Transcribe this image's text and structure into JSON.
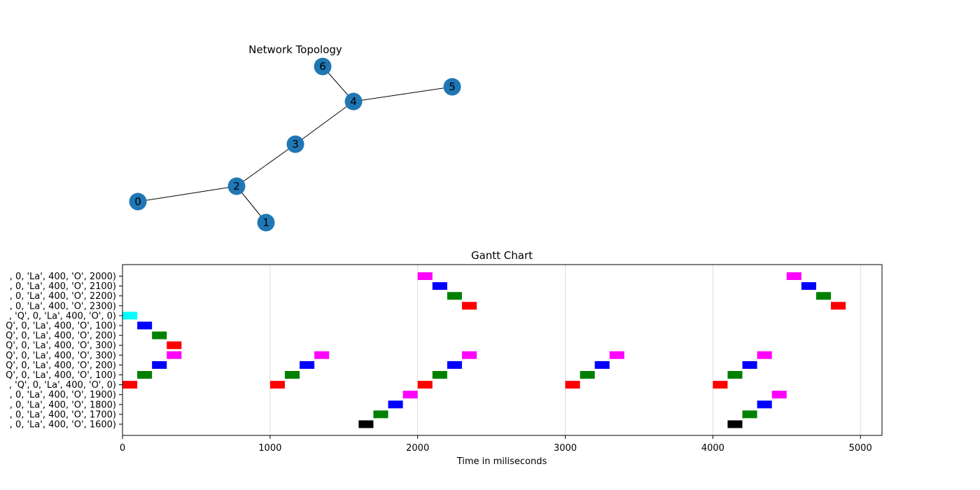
{
  "chart_data": [
    {
      "type": "network",
      "title": "Network  Topology",
      "node_color": "#1f77b4",
      "nodes": [
        "0",
        "1",
        "2",
        "3",
        "4",
        "5",
        "6"
      ],
      "edges": [
        [
          "0",
          "2"
        ],
        [
          "1",
          "2"
        ],
        [
          "2",
          "3"
        ],
        [
          "3",
          "4"
        ],
        [
          "4",
          "5"
        ],
        [
          "4",
          "6"
        ]
      ]
    },
    {
      "type": "gantt",
      "title": "Gantt Chart",
      "xlabel": "Time in miliseconds",
      "ylabel": "",
      "xlim": [
        0,
        5150
      ],
      "xticks": [
        0,
        1000,
        2000,
        3000,
        4000,
        5000
      ],
      "grid": "vertical",
      "rows": [
        ", 0, 'La', 400, 'O', 2000)",
        ", 0, 'La', 400, 'O', 2100)",
        ", 0, 'La', 400, 'O', 2200)",
        ", 0, 'La', 400, 'O', 2300)",
        ", 'Q', 0, 'La', 400, 'O', 0)",
        "Q', 0, 'La', 400, 'O', 100)",
        "Q', 0, 'La', 400, 'O', 200)",
        "Q', 0, 'La', 400, 'O', 300)",
        "Q', 0, 'La', 400, 'O', 300)",
        "Q', 0, 'La', 400, 'O', 200)",
        "Q', 0, 'La', 400, 'O', 100)",
        ", 'Q', 0, 'La', 400, 'O', 0)",
        ", 0, 'La', 400, 'O', 1900)",
        ", 0, 'La', 400, 'O', 1800)",
        ", 0, 'La', 400, 'O', 1700)",
        ", 0, 'La', 400, 'O', 1600)"
      ],
      "bars": [
        {
          "row": 0,
          "start": 2000,
          "end": 2100,
          "color": "#ff00ff"
        },
        {
          "row": 0,
          "start": 4500,
          "end": 4600,
          "color": "#ff00ff"
        },
        {
          "row": 1,
          "start": 2100,
          "end": 2200,
          "color": "#0000ff"
        },
        {
          "row": 1,
          "start": 4600,
          "end": 4700,
          "color": "#0000ff"
        },
        {
          "row": 2,
          "start": 2200,
          "end": 2300,
          "color": "#008000"
        },
        {
          "row": 2,
          "start": 4700,
          "end": 4800,
          "color": "#008000"
        },
        {
          "row": 3,
          "start": 2300,
          "end": 2400,
          "color": "#ff0000"
        },
        {
          "row": 3,
          "start": 4800,
          "end": 4900,
          "color": "#ff0000"
        },
        {
          "row": 4,
          "start": 0,
          "end": 100,
          "color": "#00ffff"
        },
        {
          "row": 5,
          "start": 100,
          "end": 200,
          "color": "#0000ff"
        },
        {
          "row": 6,
          "start": 200,
          "end": 300,
          "color": "#008000"
        },
        {
          "row": 7,
          "start": 300,
          "end": 400,
          "color": "#ff0000"
        },
        {
          "row": 8,
          "start": 300,
          "end": 400,
          "color": "#ff00ff"
        },
        {
          "row": 8,
          "start": 1300,
          "end": 1400,
          "color": "#ff00ff"
        },
        {
          "row": 8,
          "start": 2300,
          "end": 2400,
          "color": "#ff00ff"
        },
        {
          "row": 8,
          "start": 3300,
          "end": 3400,
          "color": "#ff00ff"
        },
        {
          "row": 8,
          "start": 4300,
          "end": 4400,
          "color": "#ff00ff"
        },
        {
          "row": 9,
          "start": 200,
          "end": 300,
          "color": "#0000ff"
        },
        {
          "row": 9,
          "start": 1200,
          "end": 1300,
          "color": "#0000ff"
        },
        {
          "row": 9,
          "start": 2200,
          "end": 2300,
          "color": "#0000ff"
        },
        {
          "row": 9,
          "start": 3200,
          "end": 3300,
          "color": "#0000ff"
        },
        {
          "row": 9,
          "start": 4200,
          "end": 4300,
          "color": "#0000ff"
        },
        {
          "row": 10,
          "start": 100,
          "end": 200,
          "color": "#008000"
        },
        {
          "row": 10,
          "start": 1100,
          "end": 1200,
          "color": "#008000"
        },
        {
          "row": 10,
          "start": 2100,
          "end": 2200,
          "color": "#008000"
        },
        {
          "row": 10,
          "start": 3100,
          "end": 3200,
          "color": "#008000"
        },
        {
          "row": 10,
          "start": 4100,
          "end": 4200,
          "color": "#008000"
        },
        {
          "row": 11,
          "start": 0,
          "end": 100,
          "color": "#ff0000"
        },
        {
          "row": 11,
          "start": 1000,
          "end": 1100,
          "color": "#ff0000"
        },
        {
          "row": 11,
          "start": 2000,
          "end": 2100,
          "color": "#ff0000"
        },
        {
          "row": 11,
          "start": 3000,
          "end": 3100,
          "color": "#ff0000"
        },
        {
          "row": 11,
          "start": 4000,
          "end": 4100,
          "color": "#ff0000"
        },
        {
          "row": 12,
          "start": 1900,
          "end": 2000,
          "color": "#ff00ff"
        },
        {
          "row": 12,
          "start": 4400,
          "end": 4500,
          "color": "#ff00ff"
        },
        {
          "row": 13,
          "start": 1800,
          "end": 1900,
          "color": "#0000ff"
        },
        {
          "row": 13,
          "start": 4300,
          "end": 4400,
          "color": "#0000ff"
        },
        {
          "row": 14,
          "start": 1700,
          "end": 1800,
          "color": "#008000"
        },
        {
          "row": 14,
          "start": 4200,
          "end": 4300,
          "color": "#008000"
        },
        {
          "row": 15,
          "start": 1600,
          "end": 1700,
          "color": "#000000"
        },
        {
          "row": 15,
          "start": 4100,
          "end": 4200,
          "color": "#000000"
        }
      ]
    }
  ]
}
